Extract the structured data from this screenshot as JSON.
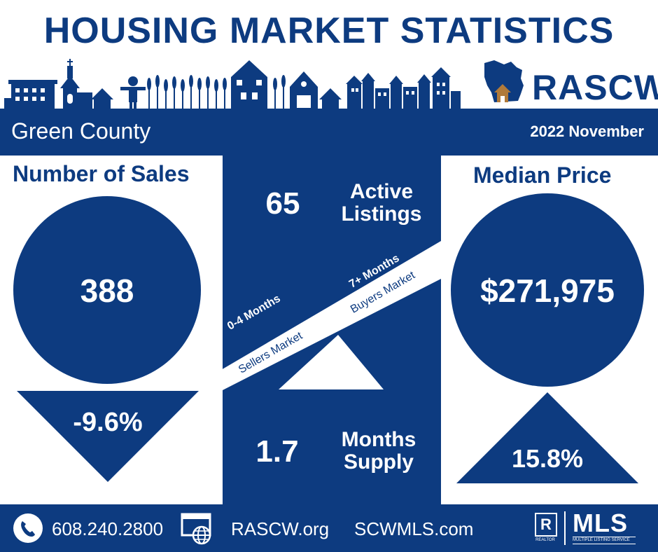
{
  "title": "HOUSING MARKET STATISTICS",
  "brand": "RASCW",
  "header": {
    "county": "Green County",
    "period": "2022 November"
  },
  "sales": {
    "heading": "Number of Sales",
    "value": "388",
    "change": "-9.6%",
    "direction": "down"
  },
  "price": {
    "heading": "Median Price",
    "value": "$271,975",
    "change": "15.8%",
    "direction": "up"
  },
  "listings": {
    "value": "65",
    "label_line1": "Active",
    "label_line2": "Listings"
  },
  "supply": {
    "value": "1.7",
    "label_line1": "Months",
    "label_line2": "Supply",
    "months": 1.7
  },
  "scale": {
    "left_top": "0-4 Months",
    "left_bottom": "Sellers Market",
    "right_top": "7+ Months",
    "right_bottom": "Buyers Market"
  },
  "footer": {
    "phone": "608.240.2800",
    "site1": "RASCW.org",
    "site2": "SCWMLS.com",
    "mls_text": "MLS",
    "mls_sub": "MULTIPLE LISTING SERVICE",
    "realtor_text": "REALTOR"
  },
  "icons": [
    "phone-icon",
    "web-icon",
    "wisconsin-house-icon",
    "realtor-icon",
    "mls-logo"
  ],
  "colors": {
    "navy": "#0d3b80",
    "white": "#ffffff",
    "house_brown": "#b07a3a"
  }
}
